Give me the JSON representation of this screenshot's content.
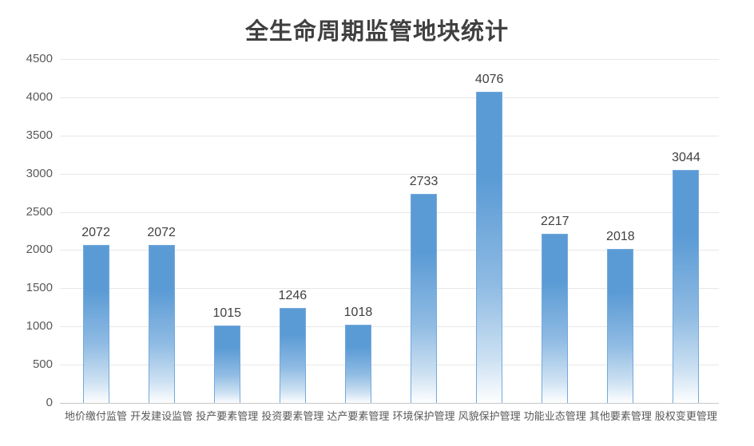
{
  "chart_data": {
    "type": "bar",
    "title": "全生命周期监管地块统计",
    "categories": [
      "地价缴付监管",
      "开发建设监管",
      "投产要素管理",
      "投资要素管理",
      "达产要素管理",
      "环境保护管理",
      "风貌保护管理",
      "功能业态管理",
      "其他要素管理",
      "股权变更管理"
    ],
    "values": [
      2072,
      2072,
      1015,
      1246,
      1018,
      2733,
      4076,
      2217,
      2018,
      3044
    ],
    "data_labels": [
      "2072",
      "2072",
      "1015",
      "1246",
      "1018",
      "2733",
      "4076",
      "2217",
      "2018",
      "3044"
    ],
    "xlabel": "",
    "ylabel": "",
    "ylim": [
      0,
      4500
    ],
    "yticks": [
      0,
      500,
      1000,
      1500,
      2000,
      2500,
      3000,
      3500,
      4000,
      4500
    ],
    "grid": "horizontal",
    "legend": "none"
  },
  "colors": {
    "background": "#ffffff",
    "bar_fill_top": "#5b9bd5",
    "bar_fill_mid": "#8fbbe3",
    "bar_fill_low": "#cde1f2",
    "bar_fill_bottom": "#ffffff",
    "bar_border": "#74a9dc",
    "gridline": "#e7e7e7",
    "axis_line": "#c8c8c8",
    "title_text": "#404040",
    "tick_text": "#595959",
    "data_label_text": "#404040",
    "category_text": "#595959"
  }
}
